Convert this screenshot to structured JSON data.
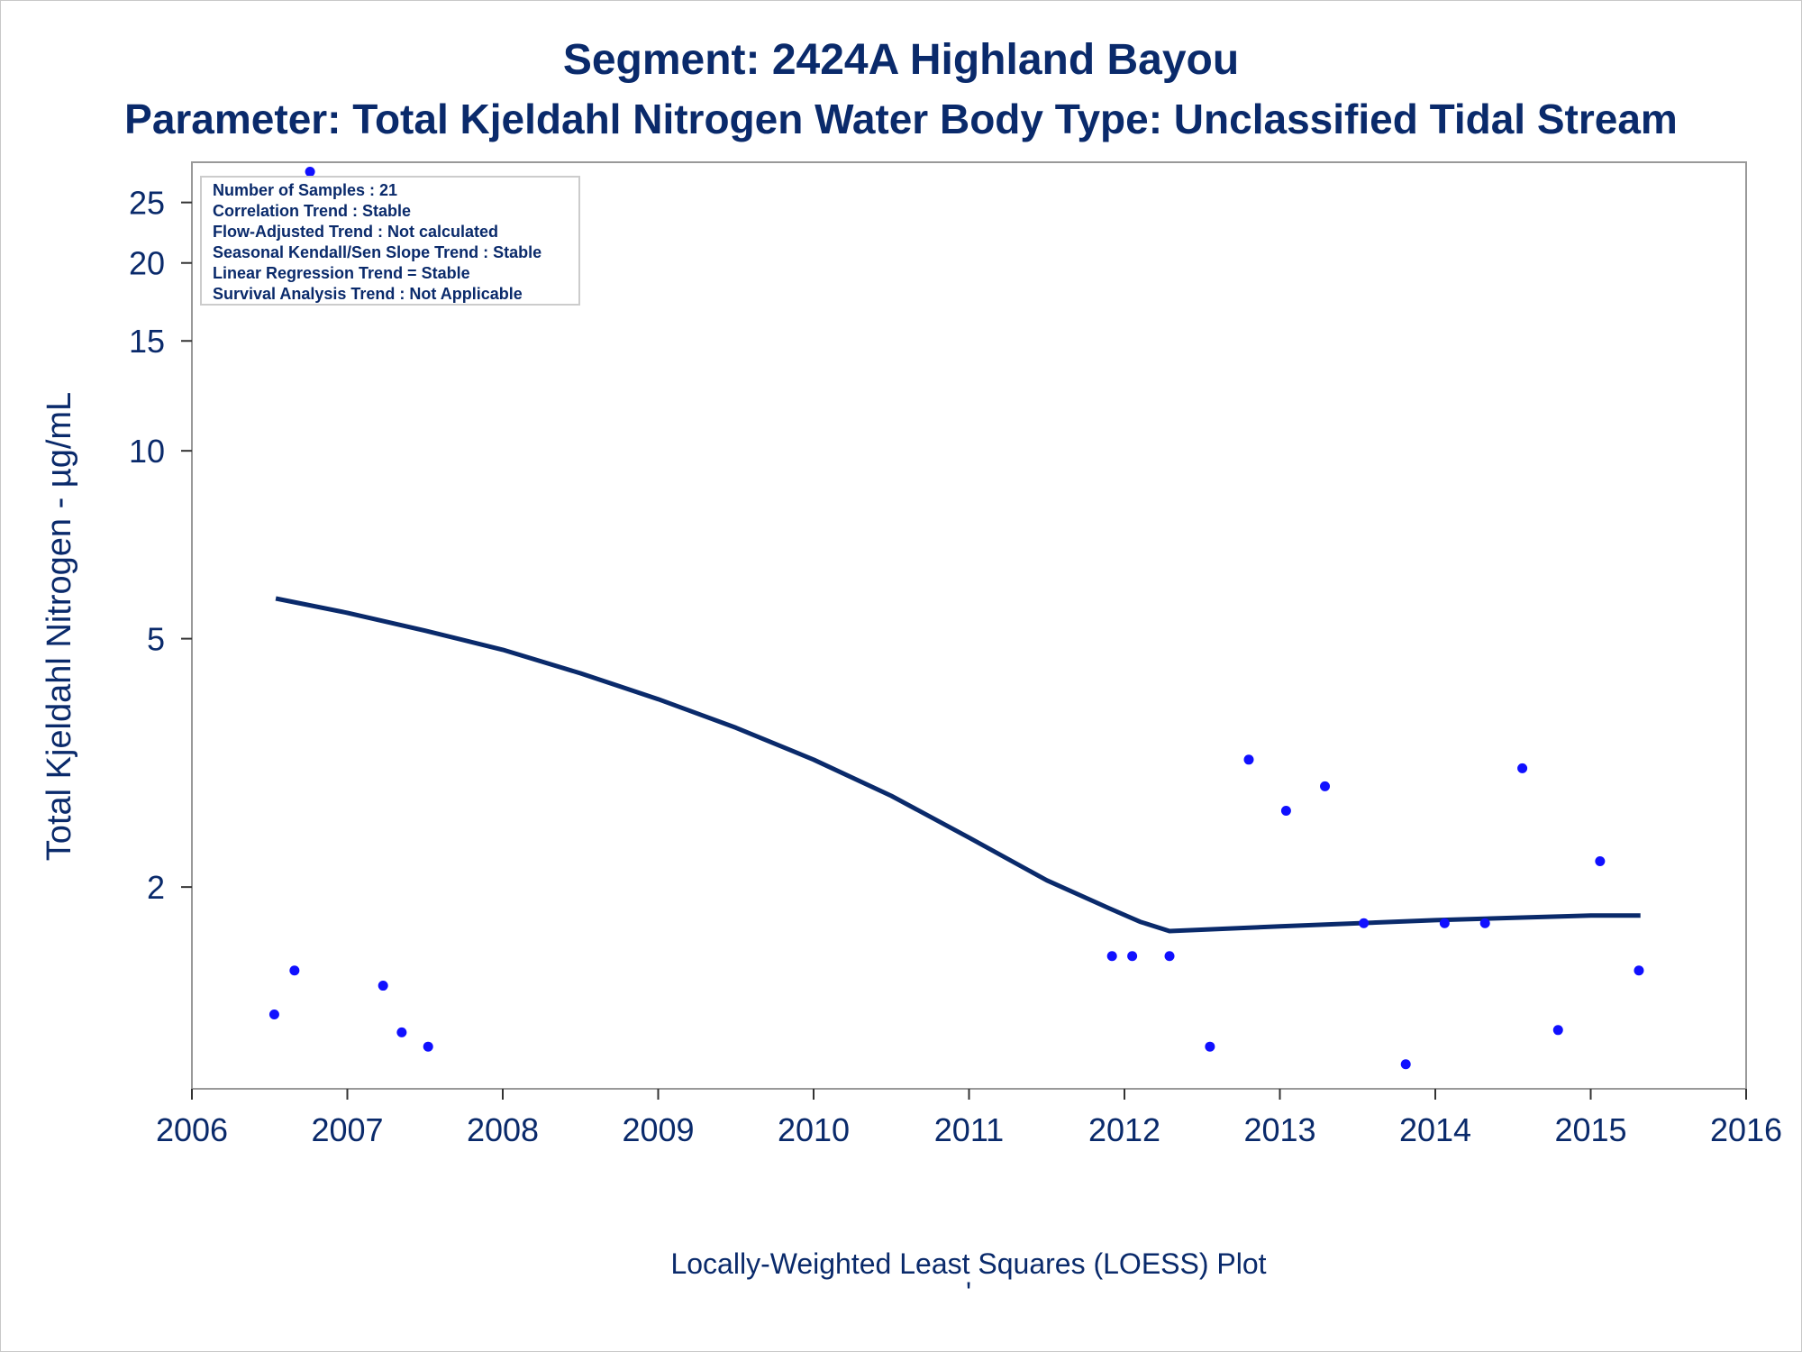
{
  "chart_data": {
    "type": "scatter",
    "title": "Segment: 2424A  Highland Bayou",
    "subtitle": "Parameter: Total Kjeldahl Nitrogen   Water Body Type: Unclassified Tidal Stream",
    "ylabel": "Total Kjeldahl Nitrogen -  µg/mL",
    "xlabel": "",
    "footnote": "Locally-Weighted Least Squares (LOESS) Plot",
    "footnote_mark": "'",
    "y_scale": "log",
    "xlim": [
      2006,
      2016
    ],
    "ylim": [
      0.95,
      29
    ],
    "x_ticks": [
      2006,
      2007,
      2008,
      2009,
      2010,
      2011,
      2012,
      2013,
      2014,
      2015,
      2016
    ],
    "y_ticks": [
      2,
      5,
      10,
      15,
      20,
      25
    ],
    "grid": false,
    "legend": {
      "placement": "top-left",
      "lines": [
        "Number of Samples : 21",
        "Correlation Trend : Stable",
        "Flow-Adjusted Trend : Not calculated",
        "Seasonal Kendall/Sen Slope Trend : Stable",
        "Linear Regression Trend = Stable",
        "Survival Analysis Trend : Not Applicable"
      ]
    },
    "series": [
      {
        "kind": "points",
        "color": "#1010ff",
        "x": [
          2006.53,
          2006.66,
          2006.76,
          2007.23,
          2007.35,
          2007.52,
          2011.92,
          2012.05,
          2012.29,
          2012.55,
          2012.8,
          2013.04,
          2013.29,
          2013.54,
          2013.81,
          2014.06,
          2014.32,
          2014.56,
          2014.79,
          2015.06,
          2015.31
        ],
        "y": [
          1.25,
          1.47,
          28.0,
          1.39,
          1.17,
          1.11,
          1.55,
          1.55,
          1.55,
          1.11,
          3.2,
          2.65,
          2.9,
          1.75,
          1.04,
          1.75,
          1.75,
          3.1,
          1.18,
          2.2,
          1.47
        ]
      },
      {
        "kind": "line",
        "color": "#0a2a6b",
        "x": [
          2006.54,
          2007.0,
          2007.5,
          2008.0,
          2008.5,
          2009.0,
          2009.5,
          2010.0,
          2010.5,
          2011.0,
          2011.5,
          2011.9,
          2012.1,
          2012.29,
          2013.0,
          2014.0,
          2015.0,
          2015.32
        ],
        "y": [
          5.8,
          5.5,
          5.15,
          4.8,
          4.4,
          4.0,
          3.6,
          3.2,
          2.8,
          2.4,
          2.05,
          1.85,
          1.76,
          1.7,
          1.73,
          1.77,
          1.8,
          1.8
        ]
      }
    ]
  }
}
